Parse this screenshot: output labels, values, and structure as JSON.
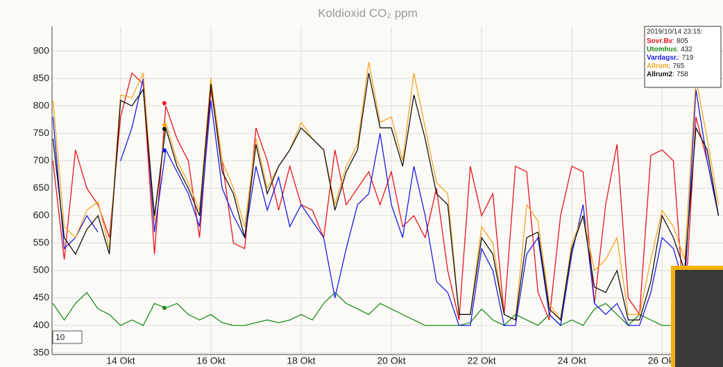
{
  "chart_data": {
    "type": "line",
    "title": "Koldioxid CO₂ ppm",
    "x": [
      12.5,
      12.75,
      13,
      13.25,
      13.5,
      13.75,
      14,
      14.25,
      14.5,
      14.75,
      15,
      15.25,
      15.5,
      15.75,
      16,
      16.25,
      16.5,
      16.75,
      17,
      17.25,
      17.5,
      17.75,
      18,
      18.25,
      18.5,
      18.75,
      19,
      19.25,
      19.5,
      19.75,
      20,
      20.25,
      20.5,
      20.75,
      21,
      21.25,
      21.5,
      21.75,
      22,
      22.25,
      22.5,
      22.75,
      23,
      23.25,
      23.5,
      23.75,
      24,
      24.25,
      24.5,
      24.75,
      25,
      25.25,
      25.5,
      25.75,
      26,
      26.25,
      26.5,
      26.75,
      27,
      27.25
    ],
    "series": [
      {
        "name": "Sovr.Bv",
        "color": "#e8131b",
        "values": [
          700,
          520,
          720,
          650,
          620,
          560,
          780,
          860,
          840,
          530,
          800,
          740,
          700,
          560,
          830,
          700,
          550,
          540,
          760,
          700,
          610,
          690,
          620,
          610,
          560,
          720,
          620,
          650,
          680,
          620,
          680,
          580,
          600,
          560,
          650,
          500,
          410,
          690,
          600,
          640,
          420,
          690,
          680,
          460,
          410,
          600,
          690,
          680,
          440,
          620,
          730,
          450,
          420,
          710,
          720,
          700,
          420,
          780,
          700,
          600
        ]
      },
      {
        "name": "Utomhus",
        "color": "#1b8c1b",
        "values": [
          440,
          410,
          440,
          460,
          430,
          420,
          400,
          410,
          400,
          440,
          432,
          440,
          420,
          410,
          420,
          405,
          400,
          400,
          405,
          410,
          405,
          410,
          420,
          410,
          440,
          460,
          440,
          430,
          420,
          440,
          430,
          420,
          410,
          400,
          400,
          400,
          400,
          405,
          430,
          410,
          400,
          420,
          410,
          400,
          420,
          400,
          410,
          400,
          430,
          440,
          420,
          400,
          420,
          410,
          400,
          400,
          400,
          400,
          400,
          400
        ]
      },
      {
        "name": "Vardagsr.",
        "color": "#1a1ae8",
        "values": [
          780,
          540,
          560,
          600,
          570,
          null,
          700,
          760,
          850,
          570,
          720,
          680,
          640,
          580,
          810,
          650,
          600,
          560,
          690,
          610,
          670,
          580,
          620,
          590,
          560,
          450,
          540,
          620,
          640,
          750,
          620,
          560,
          690,
          600,
          480,
          460,
          400,
          400,
          540,
          500,
          400,
          400,
          530,
          560,
          420,
          400,
          530,
          620,
          440,
          420,
          440,
          400,
          400,
          460,
          560,
          540,
          470,
          830,
          700,
          600
        ]
      },
      {
        "name": "Allrum",
        "color": "#f5a623",
        "values": [
          810,
          580,
          560,
          610,
          625,
          540,
          820,
          815,
          860,
          590,
          770,
          700,
          660,
          610,
          850,
          700,
          650,
          580,
          740,
          650,
          690,
          720,
          770,
          740,
          720,
          620,
          690,
          730,
          880,
          770,
          780,
          700,
          860,
          760,
          660,
          640,
          420,
          420,
          580,
          550,
          420,
          410,
          620,
          590,
          440,
          410,
          550,
          600,
          500,
          520,
          560,
          420,
          420,
          520,
          610,
          580,
          520,
          850,
          740,
          620
        ]
      },
      {
        "name": "Allrum2",
        "color": "#111111",
        "values": [
          740,
          560,
          530,
          575,
          600,
          530,
          810,
          800,
          830,
          600,
          760,
          690,
          650,
          600,
          840,
          680,
          640,
          560,
          730,
          640,
          690,
          720,
          760,
          740,
          720,
          610,
          680,
          720,
          860,
          760,
          760,
          690,
          820,
          740,
          640,
          620,
          420,
          420,
          560,
          530,
          420,
          410,
          560,
          570,
          430,
          410,
          540,
          600,
          470,
          460,
          500,
          410,
          410,
          480,
          600,
          560,
          500,
          760,
          720,
          600
        ]
      }
    ],
    "xlim": [
      12.48,
      27.35
    ],
    "ylim": [
      347,
      945
    ],
    "xticks": [
      {
        "value": 14,
        "label": "14 Okt"
      },
      {
        "value": 16,
        "label": "16 Okt"
      },
      {
        "value": 18,
        "label": "18 Okt"
      },
      {
        "value": 20,
        "label": "20 Okt"
      },
      {
        "value": 22,
        "label": "22 Okt"
      },
      {
        "value": 24,
        "label": "24 Okt"
      },
      {
        "value": 26,
        "label": "26 Okt"
      }
    ],
    "yticks": [
      350,
      400,
      450,
      500,
      550,
      600,
      650,
      700,
      750,
      800,
      850,
      900
    ],
    "grid": true,
    "highlight": {
      "label": "2019/10/14 23:15:",
      "x": 14.97,
      "separator": ":",
      "values": [
        805,
        432,
        719,
        765,
        758
      ]
    },
    "roll_period": 10
  }
}
